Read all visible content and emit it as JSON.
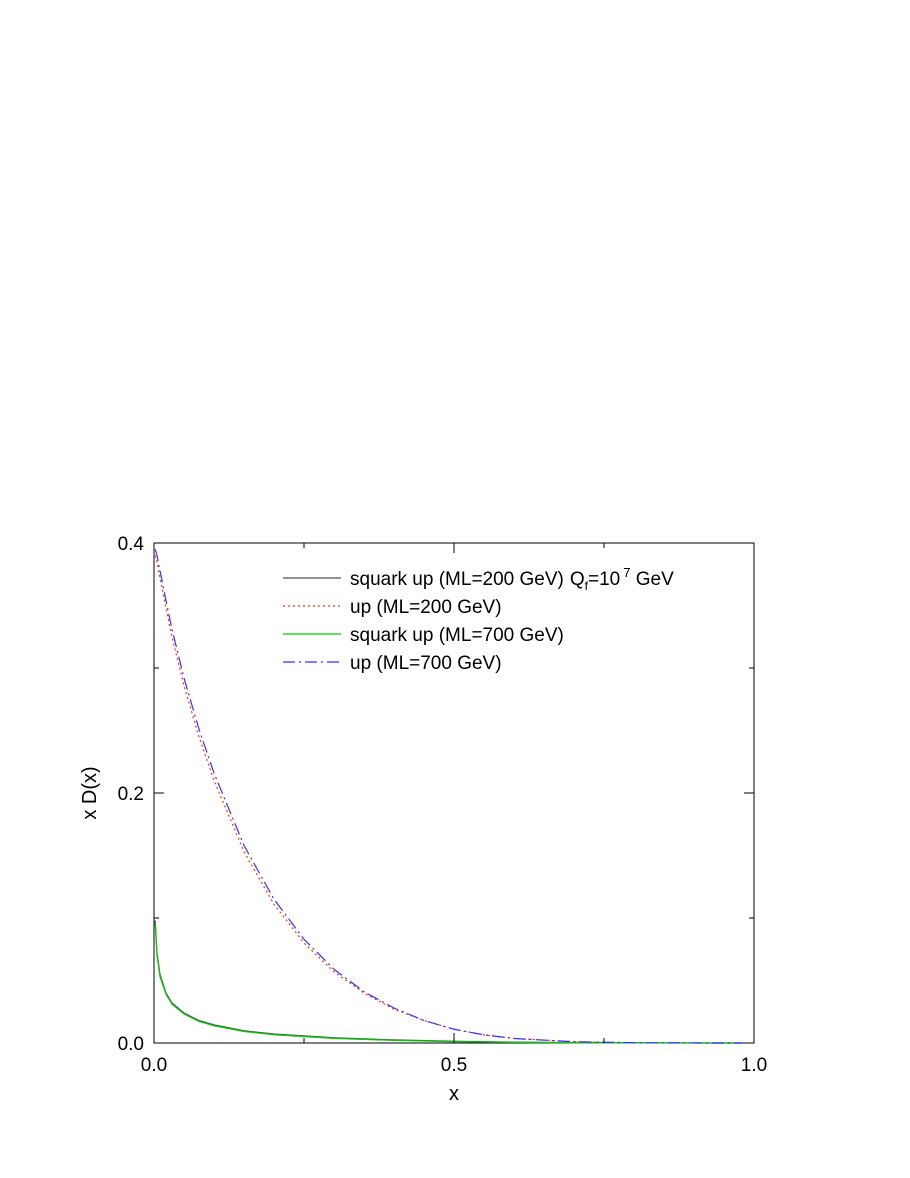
{
  "chart_data": {
    "type": "line",
    "xlabel": "x",
    "ylabel": "x D(x)",
    "xlim": [
      0.0,
      1.0
    ],
    "ylim": [
      0.0,
      0.4
    ],
    "x_ticks": [
      {
        "value": 0.0,
        "label": "0.0"
      },
      {
        "value": 0.5,
        "label": "0.5"
      },
      {
        "value": 1.0,
        "label": "1.0"
      }
    ],
    "y_ticks": [
      {
        "value": 0.0,
        "label": "0.0"
      },
      {
        "value": 0.2,
        "label": "0.2"
      },
      {
        "value": 0.4,
        "label": "0.4"
      }
    ],
    "legend_position": "top-right",
    "legend_annotation": {
      "prefix": "Q",
      "subscript": "f",
      "middle": "=10",
      "superscript": "7",
      "suffix": " GeV"
    },
    "series": [
      {
        "name": "squark up (ML=200 GeV)",
        "color": "#555555",
        "dash": "solid",
        "x": [
          0.002,
          0.005,
          0.01,
          0.02,
          0.03,
          0.05,
          0.075,
          0.1,
          0.15,
          0.2,
          0.3,
          0.4,
          0.5,
          0.6,
          0.7,
          0.8,
          0.9,
          0.98
        ],
        "y": [
          0.098,
          0.072,
          0.055,
          0.04,
          0.032,
          0.024,
          0.018,
          0.0145,
          0.0098,
          0.0072,
          0.0042,
          0.0025,
          0.0014,
          0.0007,
          0.0003,
          0.0001,
          3e-05,
          0.0
        ]
      },
      {
        "name": "up (ML=200 GeV)",
        "color": "#ff3300",
        "dash": "dotted",
        "x": [
          0.002,
          0.005,
          0.01,
          0.02,
          0.03,
          0.05,
          0.075,
          0.1,
          0.15,
          0.2,
          0.25,
          0.3,
          0.35,
          0.4,
          0.45,
          0.5,
          0.55,
          0.6,
          0.7,
          0.8,
          0.9,
          0.98
        ],
        "y": [
          0.39,
          0.385,
          0.372,
          0.348,
          0.325,
          0.286,
          0.245,
          0.21,
          0.153,
          0.111,
          0.08,
          0.057,
          0.04,
          0.027,
          0.018,
          0.011,
          0.0065,
          0.0037,
          0.001,
          0.0002,
          3e-05,
          0.0
        ]
      },
      {
        "name": "squark up (ML=700 GeV)",
        "color": "#00cc00",
        "dash": "solid",
        "x": [
          0.002,
          0.005,
          0.01,
          0.02,
          0.03,
          0.05,
          0.075,
          0.1,
          0.15,
          0.2,
          0.3,
          0.4,
          0.5,
          0.6,
          0.7,
          0.8,
          0.9,
          0.98
        ],
        "y": [
          0.095,
          0.07,
          0.053,
          0.039,
          0.031,
          0.0232,
          0.0172,
          0.0138,
          0.0092,
          0.0066,
          0.0037,
          0.0021,
          0.0011,
          0.0005,
          0.0002,
          7e-05,
          2e-05,
          0.0
        ]
      },
      {
        "name": "up (ML=700 GeV)",
        "color": "#3333ff",
        "dash": "dashdot",
        "x": [
          0.002,
          0.005,
          0.01,
          0.02,
          0.03,
          0.05,
          0.075,
          0.1,
          0.15,
          0.2,
          0.25,
          0.3,
          0.35,
          0.4,
          0.45,
          0.5,
          0.55,
          0.6,
          0.7,
          0.8,
          0.9,
          0.98
        ],
        "y": [
          0.395,
          0.39,
          0.378,
          0.354,
          0.331,
          0.292,
          0.251,
          0.216,
          0.158,
          0.115,
          0.083,
          0.059,
          0.041,
          0.028,
          0.018,
          0.011,
          0.0065,
          0.0036,
          0.001,
          0.0002,
          3e-05,
          0.0
        ]
      }
    ]
  }
}
